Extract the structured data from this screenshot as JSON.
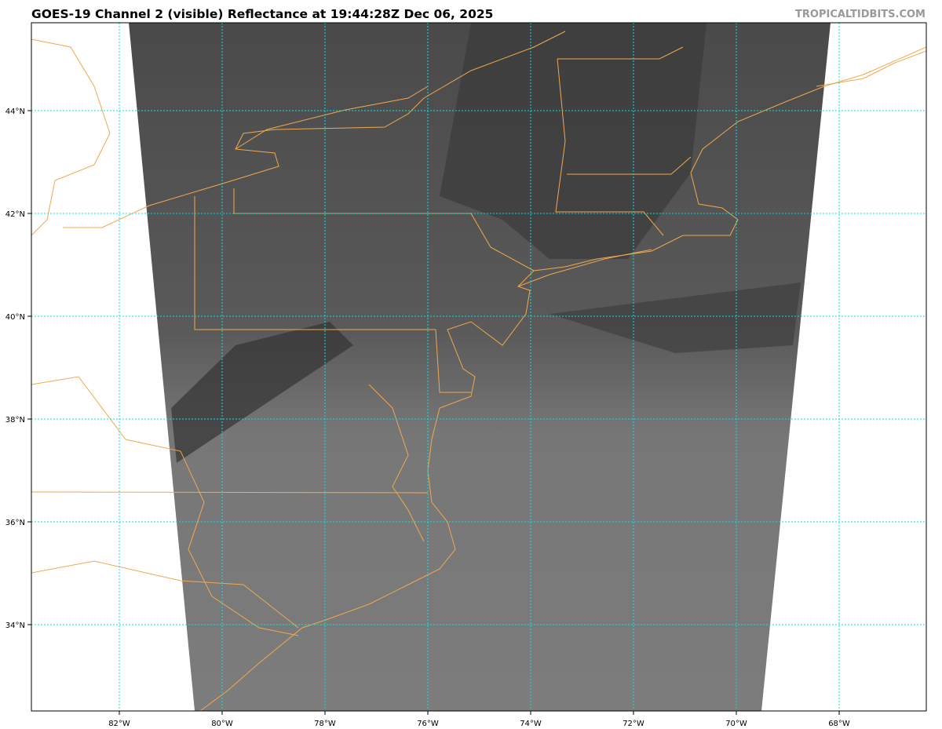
{
  "header": {
    "title": "GOES-19 Channel 2 (visible) Reflectance at 19:44:28Z Dec 06, 2025",
    "credit": "TROPICALTIDBITS.COM"
  },
  "map": {
    "lon_labels": [
      "82°W",
      "80°W",
      "78°W",
      "76°W",
      "74°W",
      "72°W",
      "70°W",
      "68°W"
    ],
    "lat_labels": [
      "44°N",
      "42°N",
      "40°N",
      "38°N",
      "36°N",
      "34°N"
    ],
    "colors": {
      "coastline": "#f0a850",
      "gridlines": "#00e5e5",
      "imagery": "#6e6e6e"
    }
  }
}
